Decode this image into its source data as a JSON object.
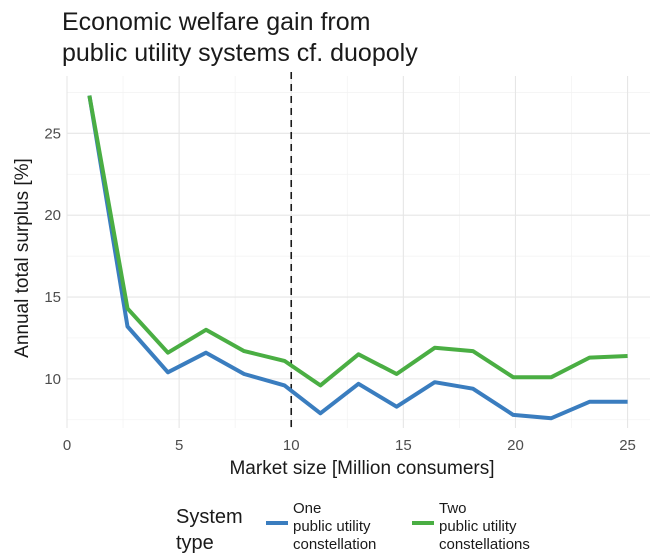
{
  "chart_data": {
    "type": "line",
    "title": [
      "Economic welfare gain from",
      "public utility systems cf. duopoly"
    ],
    "xlabel": "Market size [Million consumers]",
    "ylabel": "Annual total surplus [%]",
    "xlim": [
      0,
      26
    ],
    "ylim": [
      7,
      28.5
    ],
    "x_ticks": [
      0,
      5,
      10,
      15,
      20,
      25
    ],
    "y_ticks": [
      10,
      15,
      20,
      25
    ],
    "grid": true,
    "reference_line": {
      "x": 10,
      "style": "dashed"
    },
    "x": [
      1,
      2.7,
      4.5,
      6.2,
      7.9,
      9.7,
      11.3,
      13.0,
      14.7,
      16.4,
      18.1,
      19.9,
      21.6,
      23.3,
      25.0
    ],
    "series": [
      {
        "name": [
          "One",
          "public utility",
          "constellation"
        ],
        "color": "#3a7dbf",
        "values": [
          27.3,
          13.2,
          10.4,
          11.6,
          10.3,
          9.6,
          7.9,
          9.7,
          8.3,
          9.8,
          9.4,
          7.8,
          7.6,
          8.6,
          8.6
        ]
      },
      {
        "name": [
          "Two",
          "public utility",
          "constellations"
        ],
        "color": "#4aae43",
        "values": [
          27.3,
          14.3,
          11.6,
          13.0,
          11.7,
          11.1,
          9.6,
          11.5,
          10.3,
          11.9,
          11.7,
          10.1,
          10.1,
          11.3,
          11.4
        ]
      }
    ],
    "legend": {
      "title": [
        "System",
        "type"
      ],
      "placement": "bottom"
    }
  }
}
